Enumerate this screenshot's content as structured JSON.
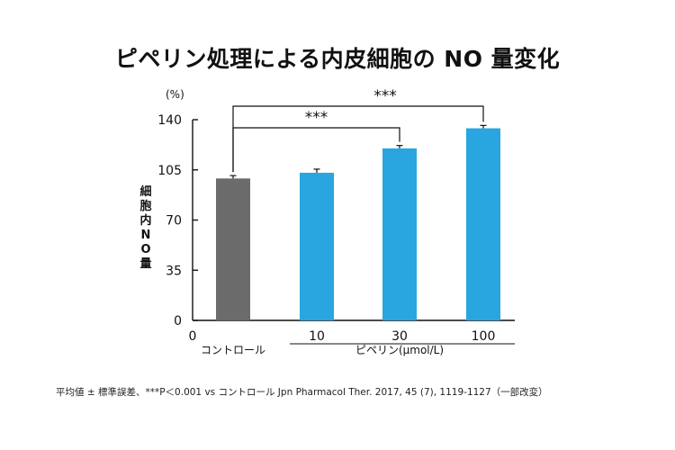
{
  "title": "ピペリン処理による内皮細胞の NO 量変化",
  "footnote": "平均値 ± 標準誤差、***P＜0.001 vs コントロール Jpn Pharmacol Ther. 2017, 45 (7), 1119-1127（一部改変）",
  "colors": {
    "control": "#6b6b6b",
    "piperine": "#29a6e0",
    "axis": "#111111"
  },
  "chart_data": {
    "type": "bar",
    "title": "ピペリン処理による内皮細胞の NO 量変化",
    "ylabel": "細胞内NO量",
    "yunit": "(%)",
    "ylim": [
      0,
      140
    ],
    "yticks": [
      "0",
      "35",
      "70",
      "105",
      "140"
    ],
    "x_origin_label": "0",
    "group_label": "ピペリン(μmol/L)",
    "categories": [
      "コントロール",
      "10",
      "30",
      "100"
    ],
    "values": [
      99,
      103,
      120,
      134
    ],
    "errors": [
      2,
      2.5,
      2,
      2
    ],
    "bar_colors": [
      "#6b6b6b",
      "#29a6e0",
      "#29a6e0",
      "#29a6e0"
    ],
    "grid": false,
    "legend": "none",
    "annotations": [
      {
        "from": 0,
        "to": 2,
        "text": "***"
      },
      {
        "from": 0,
        "to": 3,
        "text": "***"
      }
    ]
  }
}
